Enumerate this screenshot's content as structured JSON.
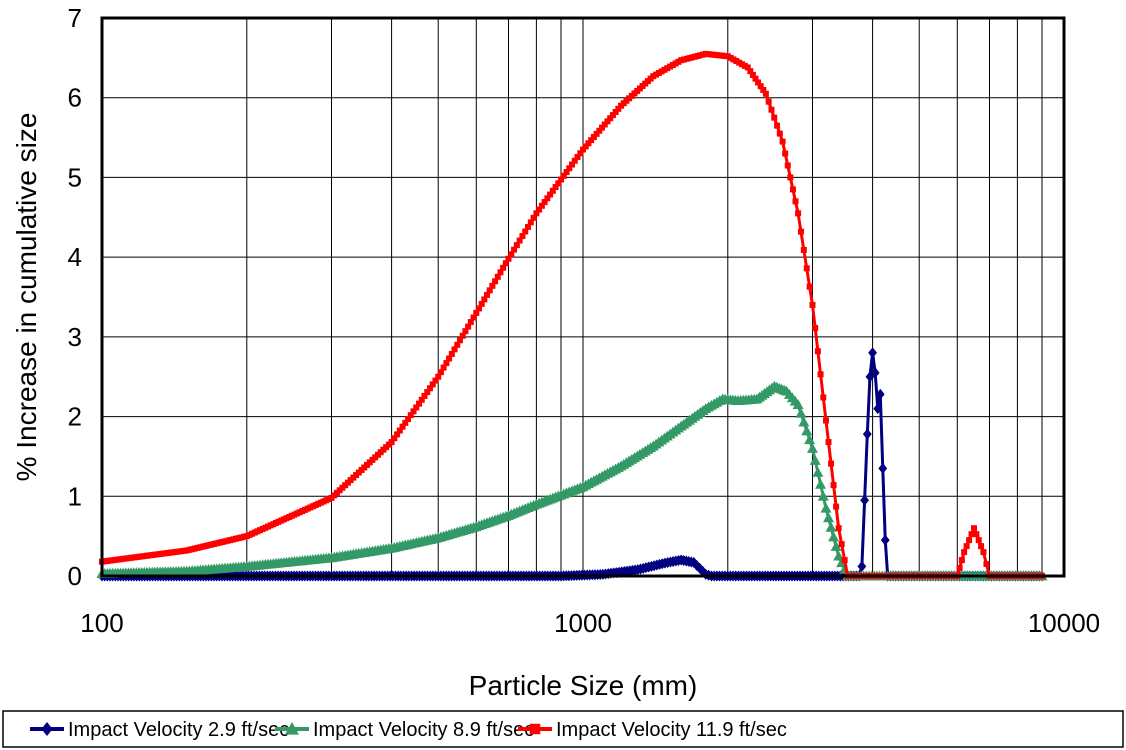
{
  "chart_data": {
    "type": "line",
    "title": "",
    "xlabel": "Particle Size (mm)",
    "ylabel": "% Increase in cumulative size",
    "x_scale": "log",
    "xlim": [
      100,
      10000
    ],
    "ylim": [
      0,
      7
    ],
    "x_ticks": [
      100,
      1000,
      10000
    ],
    "x_tick_labels": [
      "100",
      "1000",
      "10000"
    ],
    "y_ticks": [
      0,
      1,
      2,
      3,
      4,
      5,
      6,
      7
    ],
    "y_tick_labels": [
      "0",
      "1",
      "2",
      "3",
      "4",
      "5",
      "6",
      "7"
    ],
    "grid": true,
    "legend_position": "bottom",
    "series": [
      {
        "name": "Impact Velocity 2.9 ft/sec",
        "color": "#000080",
        "marker": "diamond",
        "points": [
          [
            100,
            0
          ],
          [
            900,
            0
          ],
          [
            1100,
            0.02
          ],
          [
            1300,
            0.08
          ],
          [
            1500,
            0.17
          ],
          [
            1600,
            0.2
          ],
          [
            1700,
            0.17
          ],
          [
            1800,
            0.02
          ],
          [
            1850,
            0
          ],
          [
            3750,
            0
          ],
          [
            3800,
            0.12
          ],
          [
            3850,
            0.95
          ],
          [
            3900,
            1.78
          ],
          [
            3950,
            2.5
          ],
          [
            4000,
            2.8
          ],
          [
            4050,
            2.55
          ],
          [
            4100,
            2.1
          ],
          [
            4150,
            2.28
          ],
          [
            4200,
            1.35
          ],
          [
            4250,
            0.45
          ],
          [
            4300,
            0
          ],
          [
            9000,
            0
          ]
        ]
      },
      {
        "name": "Impact Velocity 8.9 ft/sec",
        "color": "#339966",
        "marker": "triangle",
        "points": [
          [
            100,
            0.03
          ],
          [
            150,
            0.06
          ],
          [
            200,
            0.12
          ],
          [
            300,
            0.23
          ],
          [
            400,
            0.35
          ],
          [
            500,
            0.48
          ],
          [
            600,
            0.62
          ],
          [
            700,
            0.76
          ],
          [
            800,
            0.9
          ],
          [
            1000,
            1.12
          ],
          [
            1200,
            1.38
          ],
          [
            1400,
            1.63
          ],
          [
            1600,
            1.88
          ],
          [
            1800,
            2.1
          ],
          [
            1950,
            2.22
          ],
          [
            2100,
            2.2
          ],
          [
            2300,
            2.22
          ],
          [
            2500,
            2.38
          ],
          [
            2650,
            2.32
          ],
          [
            2800,
            2.15
          ],
          [
            3000,
            1.6
          ],
          [
            3200,
            0.85
          ],
          [
            3400,
            0.25
          ],
          [
            3550,
            0
          ],
          [
            9000,
            0
          ]
        ]
      },
      {
        "name": "Impact Velocity 11.9 ft/sec",
        "color": "#ff0000",
        "marker": "square",
        "points": [
          [
            100,
            0.18
          ],
          [
            150,
            0.32
          ],
          [
            200,
            0.5
          ],
          [
            300,
            0.98
          ],
          [
            400,
            1.68
          ],
          [
            500,
            2.5
          ],
          [
            600,
            3.3
          ],
          [
            700,
            3.98
          ],
          [
            800,
            4.55
          ],
          [
            1000,
            5.35
          ],
          [
            1200,
            5.9
          ],
          [
            1400,
            6.27
          ],
          [
            1600,
            6.47
          ],
          [
            1800,
            6.55
          ],
          [
            2000,
            6.52
          ],
          [
            2200,
            6.38
          ],
          [
            2400,
            6.05
          ],
          [
            2600,
            5.45
          ],
          [
            2800,
            4.55
          ],
          [
            3000,
            3.4
          ],
          [
            3200,
            1.95
          ],
          [
            3400,
            0.6
          ],
          [
            3550,
            0
          ],
          [
            6000,
            0
          ],
          [
            6200,
            0.3
          ],
          [
            6500,
            0.6
          ],
          [
            6800,
            0.3
          ],
          [
            7000,
            0
          ],
          [
            9000,
            0
          ]
        ]
      }
    ]
  }
}
